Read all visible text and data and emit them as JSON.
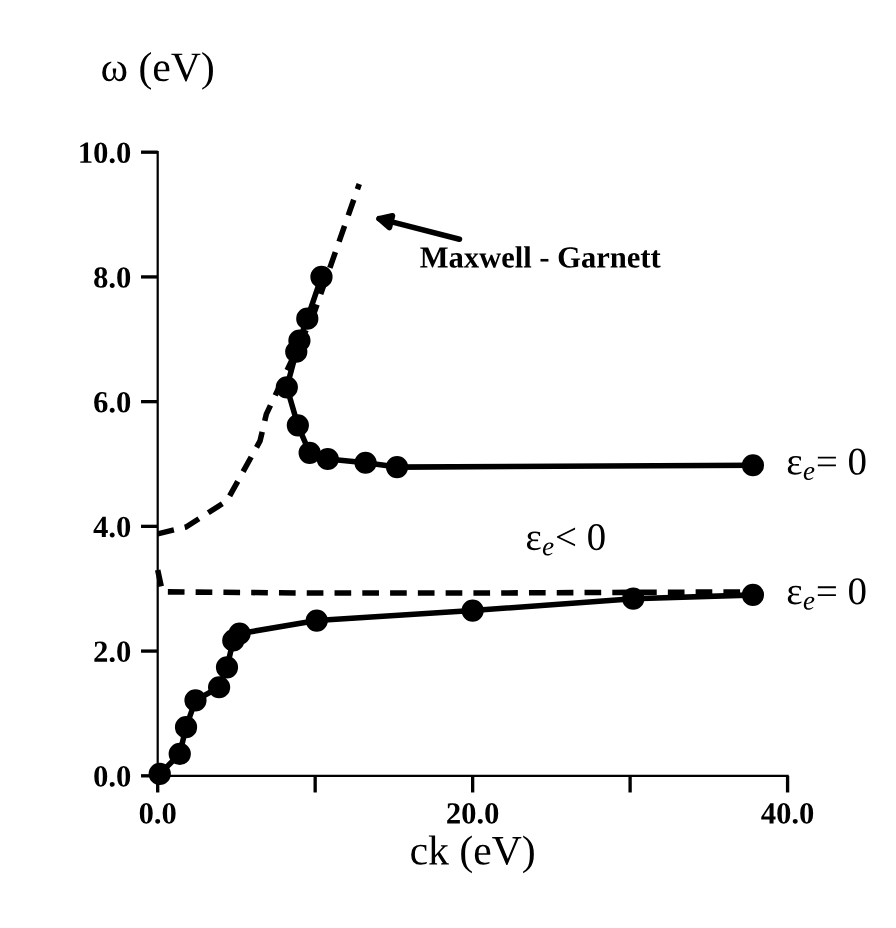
{
  "chart_data": {
    "type": "line",
    "xlabel": "ck (eV)",
    "ylabel": "ω (eV)",
    "xlim": [
      0,
      40
    ],
    "ylim": [
      0,
      10
    ],
    "xticks": [
      {
        "value": 0,
        "label": "0.0"
      },
      {
        "value": 10,
        "label": null
      },
      {
        "value": 20,
        "label": "20.0"
      },
      {
        "value": 30,
        "label": null
      },
      {
        "value": 40,
        "label": "40.0"
      }
    ],
    "yticks": [
      {
        "value": 0,
        "label": "0.0"
      },
      {
        "value": 2,
        "label": "2.0"
      },
      {
        "value": 4,
        "label": "4.0"
      },
      {
        "value": 6,
        "label": "6.0"
      },
      {
        "value": 8,
        "label": "8.0"
      },
      {
        "value": 10,
        "label": "10.0"
      }
    ],
    "grid": false,
    "legend": false,
    "series": [
      {
        "color": "#000000",
        "marker": "circle",
        "line_style": "solid",
        "x": [
          10.4,
          9.5,
          9.0,
          8.8,
          8.2,
          8.9,
          9.65,
          10.8,
          13.2,
          15.2,
          37.8
        ],
        "values": [
          8.0,
          7.33,
          6.98,
          6.8,
          6.23,
          5.62,
          5.18,
          5.08,
          5.02,
          4.95,
          4.98
        ]
      },
      {
        "color": "#000000",
        "marker": "circle",
        "line_style": "solid",
        "x": [
          0.13,
          1.4,
          1.8,
          2.4,
          3.9,
          4.4,
          4.8,
          5.2,
          10.1,
          20.0,
          30.2,
          37.8
        ],
        "values": [
          0.03,
          0.35,
          0.78,
          1.21,
          1.42,
          1.74,
          2.17,
          2.28,
          2.49,
          2.65,
          2.84,
          2.9
        ]
      },
      {
        "color": "#000000",
        "marker": "none",
        "line_style": "dashed",
        "x": [
          0,
          1.8,
          4.4,
          6.5,
          6.9,
          9.9,
          12.8
        ],
        "values": [
          3.88,
          3.99,
          4.41,
          5.37,
          5.8,
          7.4,
          9.49
        ]
      },
      {
        "color": "#000000",
        "marker": "none",
        "line_style": "dashed",
        "x": [
          0,
          0.3,
          10,
          20,
          38
        ],
        "values": [
          3.3,
          2.95,
          2.93,
          2.93,
          2.95
        ]
      }
    ],
    "annotations": [
      "Maxwell - Garnett",
      {
        "text": "ε$_{e}$= 0",
        "x": 37.8,
        "y": 4.98
      },
      {
        "text": "ε$_{e}$= 0",
        "x": 37.8,
        "y": 2.9
      },
      "ε$_{e}$< 0"
    ]
  }
}
